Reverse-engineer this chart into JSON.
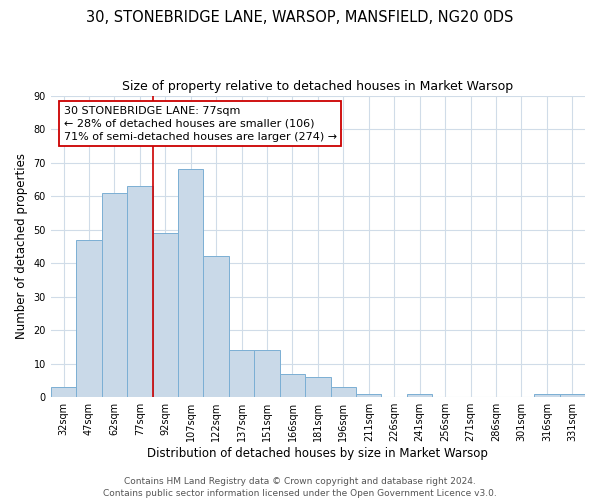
{
  "title": "30, STONEBRIDGE LANE, WARSOP, MANSFIELD, NG20 0DS",
  "subtitle": "Size of property relative to detached houses in Market Warsop",
  "xlabel": "Distribution of detached houses by size in Market Warsop",
  "ylabel": "Number of detached properties",
  "bar_labels": [
    "32sqm",
    "47sqm",
    "62sqm",
    "77sqm",
    "92sqm",
    "107sqm",
    "122sqm",
    "137sqm",
    "151sqm",
    "166sqm",
    "181sqm",
    "196sqm",
    "211sqm",
    "226sqm",
    "241sqm",
    "256sqm",
    "271sqm",
    "286sqm",
    "301sqm",
    "316sqm",
    "331sqm"
  ],
  "bar_heights": [
    3,
    47,
    61,
    63,
    49,
    68,
    42,
    14,
    14,
    7,
    6,
    3,
    1,
    0,
    1,
    0,
    0,
    0,
    0,
    1,
    1
  ],
  "bar_color": "#c9d9e8",
  "bar_edge_color": "#7bafd4",
  "grid_color": "#d0dce8",
  "vline_color": "#cc0000",
  "ylim": [
    0,
    90
  ],
  "yticks": [
    0,
    10,
    20,
    30,
    40,
    50,
    60,
    70,
    80,
    90
  ],
  "annotation_line1": "30 STONEBRIDGE LANE: 77sqm",
  "annotation_line2": "← 28% of detached houses are smaller (106)",
  "annotation_line3": "71% of semi-detached houses are larger (274) →",
  "annotation_box_color": "#ffffff",
  "annotation_box_edge": "#cc0000",
  "footer_line1": "Contains HM Land Registry data © Crown copyright and database right 2024.",
  "footer_line2": "Contains public sector information licensed under the Open Government Licence v3.0.",
  "title_fontsize": 10.5,
  "subtitle_fontsize": 9,
  "xlabel_fontsize": 8.5,
  "ylabel_fontsize": 8.5,
  "tick_fontsize": 7,
  "annotation_fontsize": 8,
  "footer_fontsize": 6.5
}
